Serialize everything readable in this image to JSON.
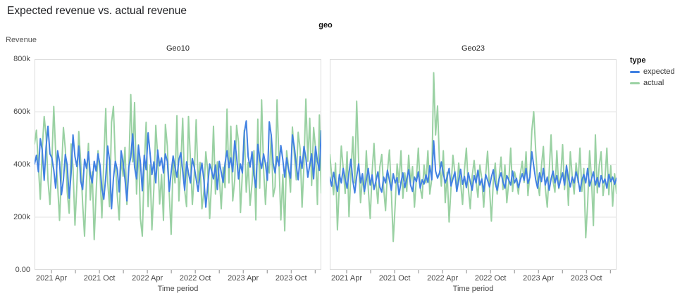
{
  "page": {
    "title": "Expected revenue vs. actual revenue"
  },
  "legend": {
    "title": "type",
    "items": [
      {
        "label": "expected",
        "color": "#4181e2"
      },
      {
        "label": "actual",
        "color": "#9ad1a3"
      }
    ]
  },
  "chart_data": {
    "type": "line",
    "title": "Expected revenue vs. actual revenue",
    "facet_field": "geo",
    "xlabel": "Time period",
    "ylabel": "Revenue",
    "ylim": [
      0,
      800000
    ],
    "values_unit": "thousands (k)",
    "y_tick_labels": [
      "0.00",
      "200k",
      "400k",
      "600k",
      "800k"
    ],
    "x_tick_labels": [
      "2021 Apr",
      "2021 Oct",
      "2022 Apr",
      "2022 Oct",
      "2023 Apr",
      "2023 Oct"
    ],
    "x_period": "weekly points, Jan 2021 - Dec 2023",
    "grid": "horizontal gridlines at 200k intervals",
    "legend_position": "right",
    "facets": [
      {
        "name": "Geo10",
        "series": [
          {
            "name": "expected",
            "values": [
              402,
              435,
              372,
              498,
              455,
              340,
              466,
              545,
              440,
              425,
              380,
              310,
              452,
              410,
              285,
              342,
              438,
              398,
              272,
              366,
              512,
              430,
              392,
              470,
              336,
              305,
              420,
              385,
              448,
              362,
              330,
              412,
              375,
              440,
              398,
              310,
              268,
              352,
              470,
              415,
              232,
              348,
              412,
              380,
              296,
              452,
              408,
              344,
              262,
              390,
              428,
              516,
              390,
              345,
              472,
              410,
              300,
              435,
              380,
              520,
              445,
              362,
              410,
              330,
              455,
              395,
              425,
              368,
              440,
              412,
              298,
              370,
              432,
              390,
              352,
              418,
              445,
              375,
              302,
              410,
              368,
              330,
              422,
              390,
              345,
              298,
              364,
              405,
              340,
              238,
              318,
              402,
              376,
              345,
              398,
              305,
              412,
              370,
              332,
              405,
              452,
              388,
              425,
              372,
              490,
              430,
              345,
              402,
              368,
              520,
              565,
              430,
              390,
              448,
              360,
              312,
              476,
              420,
              385,
              440,
              402,
              340,
              562,
              510,
              405,
              368,
              430,
              395,
              472,
              418,
              352,
              425,
              380,
              348,
              512,
              465,
              398,
              342,
              430,
              385,
              468,
              425,
              352,
              398,
              440,
              345,
              468,
              412,
              378,
              528
            ]
          },
          {
            "name": "actual",
            "values": [
              478,
              530,
              395,
              268,
              455,
              582,
              510,
              340,
              248,
              410,
              620,
              445,
              322,
              188,
              365,
              540,
              460,
              296,
              215,
              478,
              388,
              170,
              320,
              525,
              408,
              250,
              128,
              342,
              480,
              265,
              372,
              115,
              290,
              452,
              368,
              198,
              410,
              612,
              335,
              240,
              560,
              620,
              410,
              282,
              190,
              425,
              355,
              465,
              248,
              380,
              665,
              410,
              635,
              288,
              475,
              196,
              128,
              390,
              560,
              240,
              398,
              152,
              310,
              548,
              430,
              250,
              362,
              188,
              552,
              470,
              290,
              135,
              408,
              330,
              585,
              262,
              398,
              575,
              302,
              240,
              582,
              418,
              248,
              362,
              570,
              330,
              408,
              232,
              298,
              448,
              378,
              195,
              332,
              545,
              288,
              410,
              355,
              232,
              390,
              312,
              610,
              330,
              545,
              262,
              340,
              548,
              485,
              218,
              368,
              530,
              295,
              408,
              245,
              328,
              452,
              190,
              572,
              310,
              645,
              382,
              248,
              408,
              368,
              512,
              278,
              315,
              645,
              412,
              190,
              362,
              148,
              452,
              388,
              295,
              542,
              435,
              342,
              522,
              458,
              238,
              398,
              648,
              412,
              575,
              320,
              540,
              462,
              248,
              588,
              292
            ]
          }
        ]
      },
      {
        "name": "Geo23",
        "series": [
          {
            "name": "expected",
            "values": [
              352,
              318,
              370,
              335,
              298,
              362,
              330,
              385,
              345,
              310,
              368,
              420,
              338,
              292,
              355,
              402,
              330,
              365,
              298,
              342,
              385,
              322,
              360,
              305,
              338,
              372,
              315,
              295,
              352,
              330,
              378,
              340,
              302,
              365,
              330,
              350,
              285,
              332,
              368,
              312,
              345,
              380,
              322,
              298,
              352,
              335,
              372,
              310,
              342,
              326,
              360,
              332,
              395,
              342,
              490,
              375,
              348,
              368,
              410,
              365,
              330,
              352,
              385,
              318,
              345,
              372,
              298,
              340,
              382,
              325,
              355,
              312,
              368,
              335,
              302,
              358,
              330,
              378,
              322,
              345,
              298,
              362,
              340,
              315,
              352,
              380,
              328,
              302,
              345,
              368,
              335,
              310,
              358,
              342,
              322,
              375,
              330,
              348,
              312,
              340,
              365,
              340,
              385,
              328,
              352,
              448,
              395,
              342,
              310,
              368,
              335,
              385,
              322,
              352,
              302,
              345,
              375,
              330,
              358,
              312,
              342,
              368,
              322,
              395,
              348,
              315,
              352,
              330,
              372,
              345,
              298,
              340,
              362,
              330,
              385,
              318,
              345,
              372,
              322,
              350,
              315,
              358,
              330,
              345,
              310,
              362,
              335,
              352,
              325,
              348
            ]
          },
          {
            "name": "actual",
            "values": [
              438,
              360,
              285,
              405,
              152,
              330,
              470,
              385,
              290,
              448,
              202,
              365,
              505,
              330,
              640,
              412,
              255,
              352,
              288,
              452,
              310,
              195,
              368,
              480,
              335,
              252,
              390,
              438,
              310,
              225,
              375,
              455,
              298,
              108,
              248,
              402,
              332,
              452,
              272,
              368,
              298,
              435,
              330,
              392,
              238,
              345,
              462,
              312,
              272,
              398,
              330,
              452,
              288,
              345,
              748,
              512,
              622,
              408,
              318,
              452,
              255,
              370,
              182,
              312,
              435,
              368,
              298,
              405,
              332,
              248,
              380,
              462,
              308,
              232,
              355,
              415,
              338,
              275,
              398,
              345,
              238,
              362,
              450,
              312,
              185,
              340,
              405,
              288,
              352,
              428,
              305,
              398,
              255,
              332,
              462,
              298,
              372,
              340,
              288,
              362,
              412,
              332,
              448,
              282,
              365,
              528,
              600,
              452,
              335,
              282,
              395,
              468,
              312,
              238,
              372,
              512,
              338,
              295,
              452,
              308,
              355,
              475,
              305,
              398,
              245,
              448,
              352,
              288,
              405,
              332,
              462,
              298,
              385,
              122,
              248,
              452,
              345,
              168,
              512,
              292,
              395,
              448,
              282,
              345,
              462,
              285,
              395,
              242,
              365,
              290
            ]
          }
        ]
      }
    ]
  }
}
